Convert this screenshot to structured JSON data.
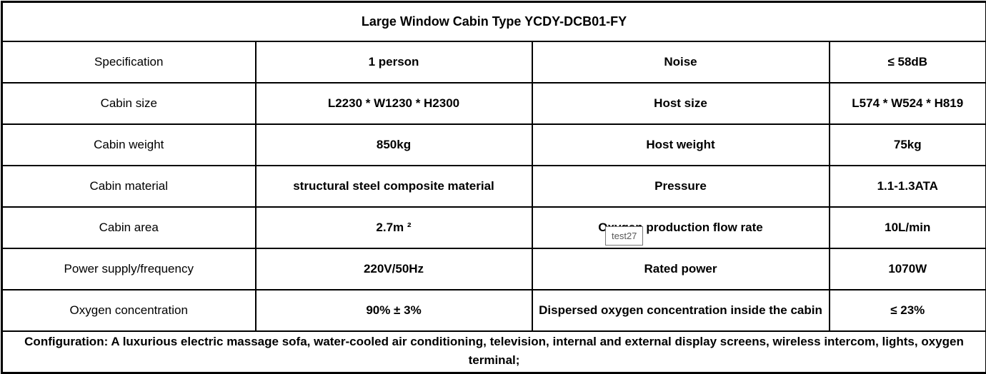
{
  "page": {
    "title": "Large Window Cabin Type YCDY-DCB01-FY"
  },
  "table": {
    "rows": [
      {
        "left_label": "Specification",
        "left_value": "1 person",
        "right_label": "Noise",
        "right_value": "≤ 58dB"
      },
      {
        "left_label": "Cabin size",
        "left_value": "L2230 * W1230 * H2300",
        "right_label": "Host size",
        "right_value": "L574 * W524 * H819"
      },
      {
        "left_label": "Cabin weight",
        "left_value": "850kg",
        "right_label": "Host weight",
        "right_value": "75kg"
      },
      {
        "left_label": "Cabin material",
        "left_value": "structural steel composite material",
        "right_label": "Pressure",
        "right_value": "1.1-1.3ATA"
      },
      {
        "left_label": "Cabin area",
        "left_value": "2.7m ²",
        "right_label": "Oxygen production flow rate",
        "right_value": "10L/min"
      },
      {
        "left_label": "Power supply/frequency",
        "left_value": "220V/50Hz",
        "right_label": "Rated power",
        "right_value": "1070W"
      },
      {
        "left_label": "Oxygen concentration",
        "left_value": "90% ± 3%",
        "right_label": "Dispersed oxygen concentration inside the cabin",
        "right_value": "≤ 23%"
      }
    ],
    "footer": "Configuration: A luxurious electric massage sofa, water-cooled air conditioning, television, internal and external display screens, wireless intercom, lights, oxygen terminal;"
  },
  "tooltip": {
    "text": "test27"
  },
  "colors": {
    "table_border": "#000000",
    "text": "#000000",
    "tooltip_border": "#767676",
    "tooltip_text": "#575757",
    "tooltip_bg": "#ffffff"
  }
}
